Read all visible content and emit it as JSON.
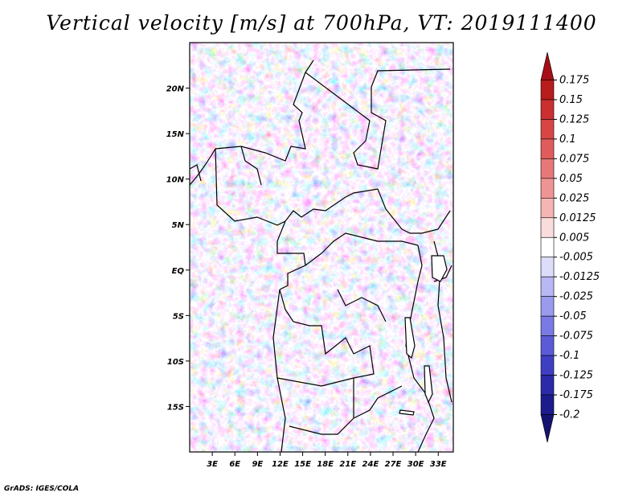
{
  "title": "Vertical velocity [m/s] at 700hPa, VT: 2019111400",
  "footer": "GrADS: IGES/COLA",
  "map": {
    "lon_range": [
      0,
      35
    ],
    "lat_range": [
      -20,
      25
    ],
    "x_ticks": [
      "3E",
      "6E",
      "9E",
      "12E",
      "15E",
      "18E",
      "21E",
      "24E",
      "27E",
      "30E",
      "33E"
    ],
    "x_tick_values": [
      3,
      6,
      9,
      12,
      15,
      18,
      21,
      24,
      27,
      30,
      33
    ],
    "y_ticks": [
      "20N",
      "15N",
      "10N",
      "5N",
      "EQ",
      "5S",
      "10S",
      "15S"
    ],
    "y_tick_values": [
      20,
      15,
      10,
      5,
      0,
      -5,
      -10,
      -15
    ],
    "field": "vertical velocity",
    "units": "m/s",
    "level": "700hPa"
  },
  "colorbar": {
    "labels": [
      "0.175",
      "0.15",
      "0.125",
      "0.1",
      "0.075",
      "0.05",
      "0.025",
      "0.0125",
      "0.005",
      "-0.005",
      "-0.0125",
      "-0.025",
      "-0.05",
      "-0.075",
      "-0.1",
      "-0.125",
      "-0.175",
      "-0.2"
    ],
    "colors": [
      "#a50f15",
      "#b81c1c",
      "#cb2f2f",
      "#d94545",
      "#e05c5c",
      "#e87878",
      "#ef9494",
      "#f5b5b5",
      "#fbdcdc",
      "#ffffff",
      "#dcdcfb",
      "#b8b8f5",
      "#9a9aee",
      "#7a7ae4",
      "#5b5bd8",
      "#3f3fc4",
      "#2a2aaa",
      "#1c1c8c",
      "#141470"
    ]
  }
}
